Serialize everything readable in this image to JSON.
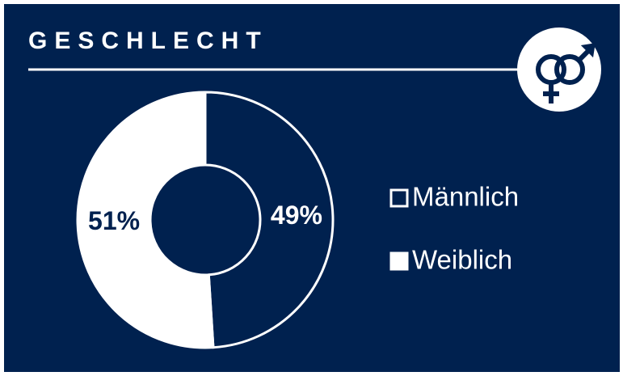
{
  "chart_data": {
    "type": "donut",
    "title": "GESCHLECHT",
    "categories": [
      "Männlich",
      "Weiblich"
    ],
    "values": [
      49,
      51
    ],
    "value_labels": [
      "49%",
      "51%"
    ],
    "colors": [
      "#00214f",
      "#ffffff"
    ]
  }
}
